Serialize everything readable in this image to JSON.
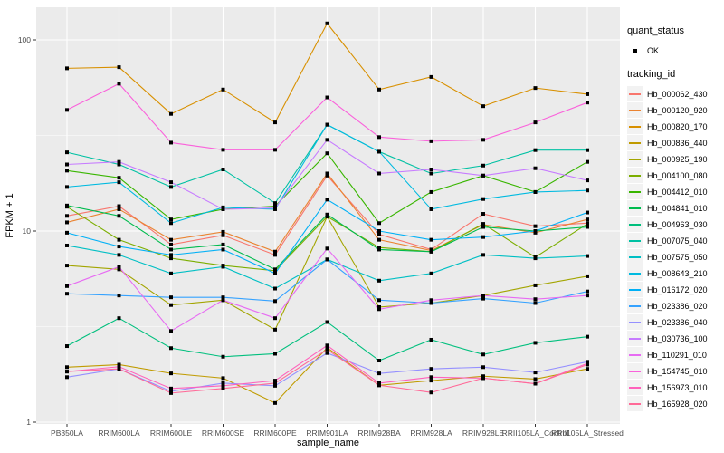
{
  "page": {
    "background": "#FFFFFF"
  },
  "axes": {
    "y_title": "FPKM + 1",
    "x_title": "sample_name",
    "tick_label_color": "#4D4D4D",
    "tick_mark_color": "#333333"
  },
  "legend": {
    "quant_status_title": "quant_status",
    "quant_status_ok_label": "OK",
    "tracking_id_title": "tracking_id"
  },
  "chart_data": {
    "type": "line",
    "title": "",
    "xlabel": "sample_name",
    "ylabel": "FPKM + 1",
    "y_scale": "log10",
    "y_ticks": [
      1,
      10,
      100
    ],
    "y_minor_gridlines": [
      3.162,
      31.623
    ],
    "ylim": [
      0.98,
      150
    ],
    "grid": "white major and minor gridlines on gray panel",
    "legend_position": "right",
    "panel_background": "#EBEBEB",
    "gridline_color": "#FFFFFF",
    "point": {
      "shape": "filled-square",
      "color": "#000000",
      "size": 4,
      "meaning": "quant_status OK"
    },
    "categories": [
      "PB350LA",
      "RRIM600LA",
      "RRIM600LE",
      "RRIM600SE",
      "RRIM600PE",
      "RRIM901LA",
      "RRIM928BA",
      "RRIM928LA",
      "RRIM928LE",
      "RRII105LA_Control",
      "RRII105LA_Stressed"
    ],
    "series": [
      {
        "name": "Hb_000062_430",
        "color": "#F8766D",
        "values": [
          12,
          13.5,
          8.5,
          9.5,
          7.5,
          19.5,
          9.6,
          8,
          12.3,
          10.6,
          11
        ]
      },
      {
        "name": "Hb_000120_920",
        "color": "#EA8331",
        "values": [
          11.1,
          13,
          9,
          9.9,
          7.8,
          20,
          9,
          7.9,
          10.8,
          9.8,
          11.5
        ]
      },
      {
        "name": "Hb_000820_170",
        "color": "#D89000",
        "values": [
          71,
          72,
          41,
          55,
          37,
          122,
          55,
          64,
          45,
          56,
          52
        ]
      },
      {
        "name": "Hb_000836_440",
        "color": "#C09B00",
        "values": [
          1.94,
          2,
          1.8,
          1.7,
          1.26,
          2.45,
          1.56,
          1.65,
          1.74,
          1.68,
          1.9
        ]
      },
      {
        "name": "Hb_000925_190",
        "color": "#A3A500",
        "values": [
          6.6,
          6.3,
          4.1,
          4.35,
          3.05,
          11.9,
          4,
          4.2,
          4.6,
          5.2,
          5.8
        ]
      },
      {
        "name": "Hb_004100_080",
        "color": "#7CAE00",
        "values": [
          13.4,
          9,
          7.2,
          6.6,
          6.2,
          11.9,
          8.2,
          7.8,
          10.9,
          7.3,
          10.9
        ]
      },
      {
        "name": "Hb_004412_010",
        "color": "#39B600",
        "values": [
          20.7,
          19,
          11.5,
          13,
          13.5,
          25.5,
          11,
          16,
          19.5,
          16,
          23
        ]
      },
      {
        "name": "Hb_004841_010",
        "color": "#00BB4E",
        "values": [
          13.6,
          12,
          8,
          8.5,
          6.3,
          12.2,
          8,
          7.8,
          10.5,
          10,
          10.5
        ]
      },
      {
        "name": "Hb_004963_030",
        "color": "#00BF7D",
        "values": [
          2.5,
          3.5,
          2.44,
          2.2,
          2.28,
          3.34,
          2.1,
          2.7,
          2.26,
          2.6,
          2.8
        ]
      },
      {
        "name": "Hb_007075_040",
        "color": "#00C1A3",
        "values": [
          25.8,
          22.3,
          17,
          21,
          14,
          36,
          26,
          20,
          22,
          26.5,
          26.5
        ]
      },
      {
        "name": "Hb_007575_050",
        "color": "#00BFC4",
        "values": [
          8.4,
          7.5,
          6,
          6.5,
          5,
          7.1,
          5.5,
          6,
          7.5,
          7.2,
          7.4
        ]
      },
      {
        "name": "Hb_008643_210",
        "color": "#00BAE0",
        "values": [
          17,
          18,
          11,
          13.3,
          13,
          36,
          26,
          13,
          14.7,
          16,
          16.3
        ]
      },
      {
        "name": "Hb_016172_020",
        "color": "#00B0F6",
        "values": [
          9.8,
          8.3,
          7.5,
          8,
          6,
          14.6,
          10,
          9,
          9.3,
          10,
          12.5
        ]
      },
      {
        "name": "Hb_023386_020",
        "color": "#35A2FF",
        "values": [
          4.7,
          4.6,
          4.5,
          4.5,
          4.3,
          7.1,
          4.35,
          4.2,
          4.43,
          4.2,
          4.83
        ]
      },
      {
        "name": "Hb_023386_040",
        "color": "#9590FF",
        "values": [
          1.72,
          1.9,
          1.45,
          1.6,
          1.55,
          2.3,
          1.8,
          1.9,
          1.94,
          1.82,
          2.07
        ]
      },
      {
        "name": "Hb_030736_100",
        "color": "#C77CFF",
        "values": [
          22.3,
          23,
          18,
          13,
          13.2,
          30,
          20,
          21,
          19.5,
          21.3,
          18.4
        ]
      },
      {
        "name": "Hb_110291_010",
        "color": "#E76BF3",
        "values": [
          5.15,
          6.5,
          3,
          4.35,
          3.5,
          8.1,
          3.9,
          4.35,
          4.6,
          4.4,
          4.6
        ]
      },
      {
        "name": "Hb_154745_010",
        "color": "#FA62DB",
        "values": [
          43,
          59,
          29,
          26.6,
          26.6,
          50,
          31,
          29.5,
          30,
          37,
          47
        ]
      },
      {
        "name": "Hb_156973_010",
        "color": "#FF62BC",
        "values": [
          1.84,
          1.95,
          1.5,
          1.55,
          1.65,
          2.52,
          1.6,
          1.72,
          1.7,
          1.59,
          2.03
        ]
      },
      {
        "name": "Hb_165928_020",
        "color": "#FF6A98",
        "values": [
          1.84,
          1.9,
          1.42,
          1.5,
          1.6,
          2.4,
          1.56,
          1.43,
          1.7,
          1.59,
          2.0
        ]
      }
    ]
  }
}
